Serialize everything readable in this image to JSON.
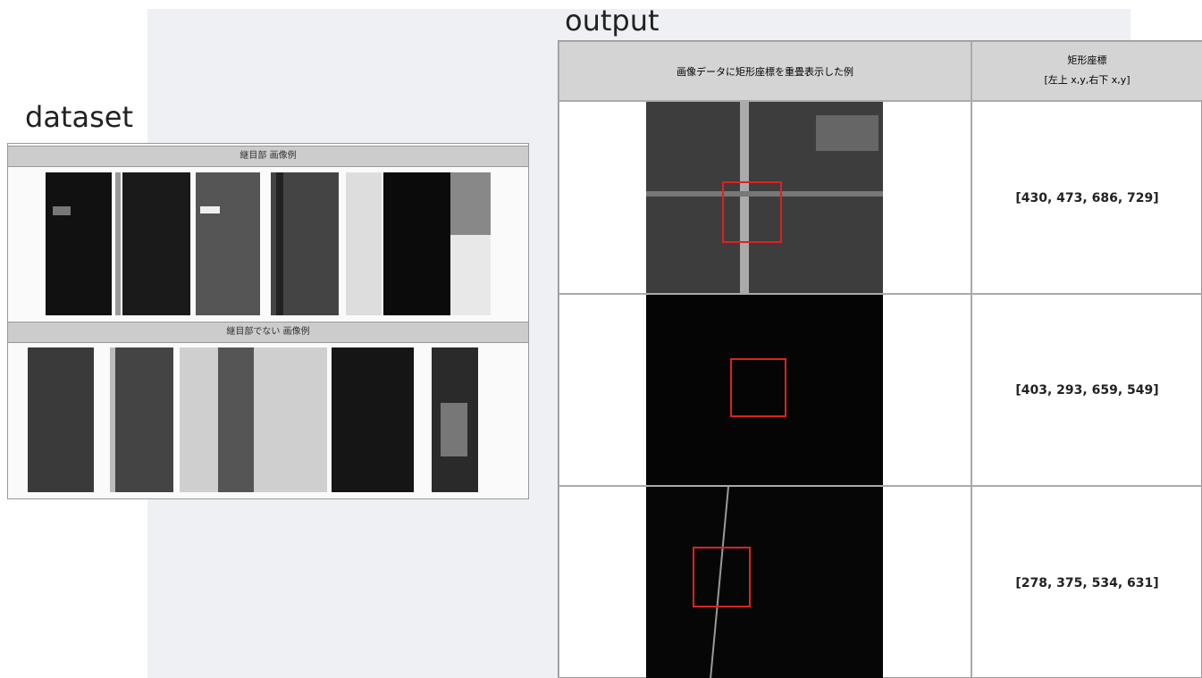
{
  "dataset": {
    "title": "dataset",
    "sections": [
      {
        "label": "継目部 画像例"
      },
      {
        "label": "継目部でない 画像例"
      }
    ]
  },
  "output": {
    "title": "output",
    "table": {
      "header": [
        "画像データに矩形座標を重畳表示した例",
        [
          "矩形座標",
          "[左上 x,y,右下 x,y]"
        ]
      ],
      "rows": [
        {
          "coords": "[430, 473, 686, 729]"
        },
        {
          "coords": "[403, 293, 659, 549]"
        },
        {
          "coords": "[278, 375, 534, 631]"
        }
      ]
    }
  }
}
